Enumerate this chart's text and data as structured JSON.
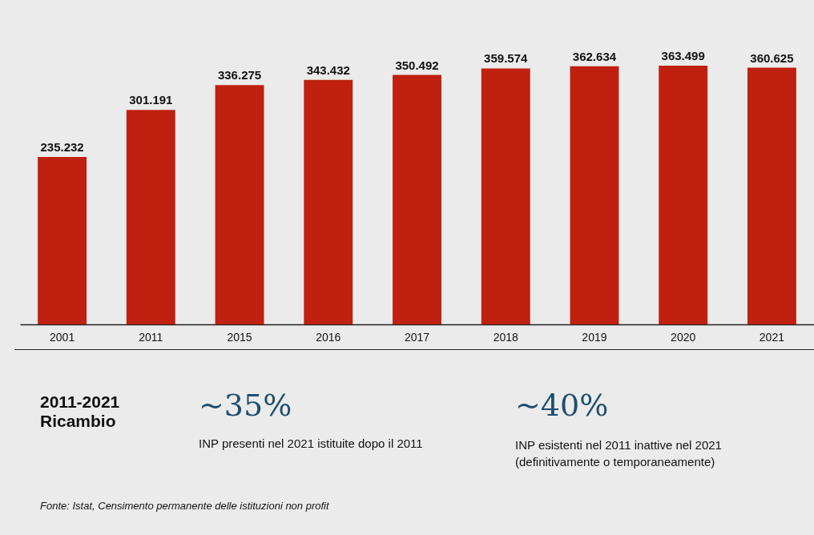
{
  "chart_data": {
    "type": "bar",
    "categories": [
      "2001",
      "2011",
      "2015",
      "2016",
      "2017",
      "2018",
      "2019",
      "2020",
      "2021"
    ],
    "values": [
      235232,
      301191,
      336275,
      343432,
      350492,
      359574,
      362634,
      363499,
      360625
    ],
    "value_labels": [
      "235.232",
      "301.191",
      "336.275",
      "343.432",
      "350.492",
      "359.574",
      "362.634",
      "363.499",
      "360.625"
    ],
    "color": "#c0200f",
    "annotations": [
      "2011-2021 Ricambio",
      "~35%",
      "INP presenti nel 2021  istituite dopo il 2011",
      "~40%",
      "INP esistenti nel 2011 inattive nel 2021 (definitivamente o temporaneamente)",
      "Fonte: Istat, Censimento permanente delle istituzioni non profit"
    ]
  }
}
